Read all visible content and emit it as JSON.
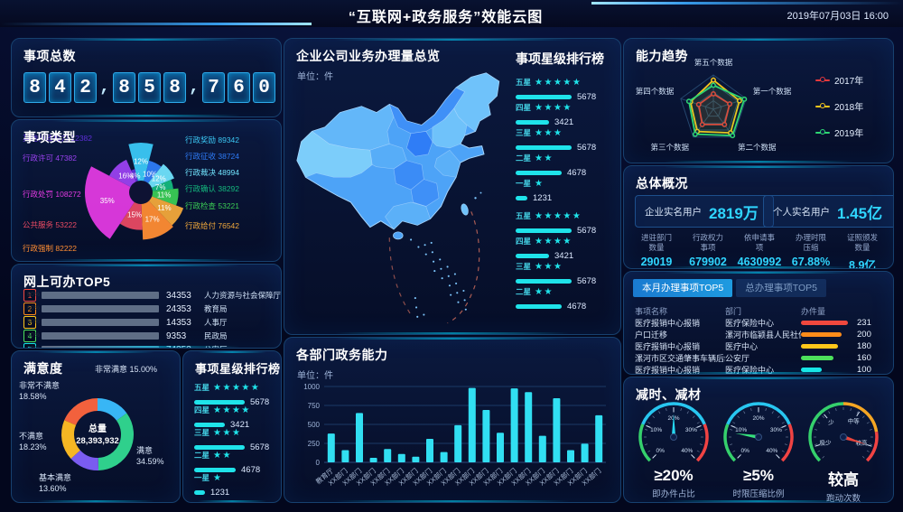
{
  "header": {
    "title": "“互联网+政务服务”效能云图",
    "datetime": "2019年07月03日  16:00"
  },
  "left": {
    "total": {
      "title": "事项总数",
      "value": "842,858,760"
    },
    "types_title": "事项类型",
    "online_title": "网上可办TOP5",
    "satisfaction_title": "满意度",
    "stars_title": "事项星级排行榜"
  },
  "middle": {
    "map_title": "企业公司业务办理量总览",
    "map_unit": "单位：件",
    "map_stars_title": "事项星级排行榜",
    "dept_title": "各部门政务能力",
    "dept_unit": "单位：件"
  },
  "right": {
    "radar_title": "能力趋势",
    "overview": {
      "title": "总体概况",
      "boxes": [
        {
          "label": "企业实名用户",
          "value": "2819万"
        },
        {
          "label": "个人实名用户",
          "value": "1.45亿"
        }
      ],
      "stats": [
        {
          "l1": "进驻部门",
          "l2": "数量",
          "value": "29019"
        },
        {
          "l1": "行政权力",
          "l2": "事项",
          "value": "679902"
        },
        {
          "l1": "依申请事",
          "l2": "项",
          "value": "4630992"
        },
        {
          "l1": "办理时限",
          "l2": "压缩",
          "value": "67.88%"
        },
        {
          "l1": "证照颁发",
          "l2": "数量",
          "value": "8.9亿"
        }
      ]
    },
    "table": {
      "tabs": [
        {
          "label": "本月办理事项TOP5",
          "active": true
        },
        {
          "label": "总办理事项TOP5",
          "active": false
        }
      ],
      "headers": [
        "事项名称",
        "部门",
        "办件量"
      ],
      "rows": [
        {
          "name": "医疗报销中心报销",
          "dept": "医疗保险中心",
          "value": 231,
          "color": "#f0483e"
        },
        {
          "name": "户口迁移",
          "dept": "漯河市临颍县人民社保...",
          "value": 200,
          "color": "#ff8c1a"
        },
        {
          "name": "医疗报销中心报销",
          "dept": "医疗中心",
          "value": 180,
          "color": "#ffc71a"
        },
        {
          "name": "漯河市区交通肇事车辆后续处...",
          "dept": "公安厅",
          "value": 160,
          "color": "#4ce05b"
        },
        {
          "name": "医疗报销中心报销",
          "dept": "医疗保险中心",
          "value": 100,
          "color": "#17e6e6"
        }
      ]
    },
    "gauges_title": "减时、减材"
  },
  "chart_data": [
    {
      "id": "item_types",
      "type": "rose",
      "title": "事项类型",
      "slices": [
        {
          "label": "行政奖励",
          "value": 89342,
          "percent": 12,
          "color": "#3bc8f5"
        },
        {
          "label": "行政征收",
          "value": 38724,
          "percent": 10,
          "color": "#2e7bf6"
        },
        {
          "label": "行政裁决",
          "value": 48994,
          "percent": 12,
          "color": "#70e2fc"
        },
        {
          "label": "行政确认",
          "value": 38292,
          "percent": 7,
          "color": "#14b87e"
        },
        {
          "label": "行政检查",
          "value": 53221,
          "percent": 11,
          "color": "#3acb55"
        },
        {
          "label": "行政给付",
          "value": 76542,
          "percent": 11,
          "color": "#f2a93b"
        },
        {
          "label": "行政强制",
          "value": 82222,
          "percent": 17,
          "color": "#ff8d33"
        },
        {
          "label": "公共服务",
          "value": 53222,
          "percent": 15,
          "color": "#e84a63"
        },
        {
          "label": "行政处罚",
          "value": 108272,
          "percent": 35,
          "color": "#e23ae2"
        },
        {
          "label": "行政许可",
          "value": 47382,
          "percent": 16,
          "color": "#9a41f0"
        },
        {
          "label": "其他行政权力",
          "value": 12382,
          "percent": 4,
          "color": "#5d2fd8"
        }
      ],
      "left_labels": [
        10,
        9,
        8,
        7,
        6
      ],
      "right_labels": [
        0,
        1,
        2,
        3,
        4,
        5
      ]
    },
    {
      "id": "online_top5",
      "type": "bar",
      "title": "网上可办TOP5",
      "rows": [
        {
          "rank": 1,
          "percent": 80,
          "value": 34353,
          "dept": "人力资源与社会保障厅",
          "color": "#f0483e"
        },
        {
          "rank": 2,
          "percent": 60,
          "value": 24353,
          "dept": "教育局",
          "color": "#ff8c1a"
        },
        {
          "rank": 3,
          "percent": 50,
          "value": 14353,
          "dept": "人事厅",
          "color": "#ffc71a"
        },
        {
          "rank": 4,
          "percent": 40,
          "value": 9353,
          "dept": "民政局",
          "color": "#4ce05b"
        },
        {
          "rank": 5,
          "percent": 30,
          "value": 74353,
          "dept": "公安厅",
          "color": "#17e6e6"
        }
      ]
    },
    {
      "id": "satisfaction",
      "type": "pie",
      "title": "满意度",
      "center_label": "总量",
      "center_value": "28,393,932",
      "slices": [
        {
          "label": "非常满意",
          "percent": 15.0,
          "display": "15.00%",
          "color": "#38b6f5"
        },
        {
          "label": "满意",
          "percent": 34.59,
          "display": "34.59%",
          "color": "#2fd08c"
        },
        {
          "label": "基本满意",
          "percent": 13.6,
          "display": "13.60%",
          "color": "#7a5cf0"
        },
        {
          "label": "不满意",
          "percent": 18.23,
          "display": "18.23%",
          "color": "#f5b623"
        },
        {
          "label": "非常不满意",
          "percent": 18.58,
          "display": "18.58%",
          "color": "#f2613d"
        }
      ]
    },
    {
      "id": "star_rank_left",
      "type": "stars",
      "title": "事项星级排行榜",
      "max": 5678,
      "groups": [
        {
          "label": "五星",
          "stars": 5,
          "value": 5678
        },
        {
          "label": "四星",
          "stars": 4,
          "value": 3421
        },
        {
          "label": "三星",
          "stars": 3,
          "value": 5678
        },
        {
          "label": "二星",
          "stars": 2,
          "value": 4678
        },
        {
          "label": "一星",
          "stars": 1,
          "value": 1231
        }
      ]
    },
    {
      "id": "star_rank_map",
      "type": "stars",
      "title": "事项星级排行榜",
      "max": 5678,
      "set_break": 5,
      "groups": [
        {
          "label": "五星",
          "stars": 5,
          "value": 5678
        },
        {
          "label": "四星",
          "stars": 4,
          "value": 3421
        },
        {
          "label": "三星",
          "stars": 3,
          "value": 5678
        },
        {
          "label": "二星",
          "stars": 2,
          "value": 4678
        },
        {
          "label": "一星",
          "stars": 1,
          "value": 1231
        },
        {
          "label": "五星",
          "stars": 5,
          "value": 5678
        },
        {
          "label": "四星",
          "stars": 4,
          "value": 3421
        },
        {
          "label": "三星",
          "stars": 3,
          "value": 5678
        },
        {
          "label": "二星",
          "stars": 2,
          "value": 4678
        }
      ]
    },
    {
      "id": "dept_capacity",
      "type": "bar",
      "title": "各部门政务能力",
      "unit": "单位：件",
      "categories": [
        "教育厅",
        "XX部门",
        "XX部门",
        "XX部门",
        "XX部门",
        "XX部门",
        "XX部门",
        "XX部门",
        "XX部门",
        "XX部门",
        "XX部门",
        "XX部门",
        "XX部门",
        "XX部门",
        "XX部门",
        "XX部门",
        "XX部门",
        "XX部门",
        "XX部门",
        "XX部门"
      ],
      "values": [
        380,
        160,
        650,
        60,
        175,
        110,
        75,
        310,
        135,
        490,
        980,
        690,
        390,
        975,
        925,
        350,
        845,
        160,
        245,
        620
      ],
      "yticks": [
        0,
        250,
        500,
        750,
        1000
      ],
      "ymax": 1000,
      "bar_color": "#31dff2"
    },
    {
      "id": "ability_trend",
      "type": "radar",
      "title": "能力趋势",
      "max": 100,
      "levels": 4,
      "axes": [
        "第一个数据",
        "第二个数据",
        "第三个数据",
        "第四个数据",
        "第五个数据"
      ],
      "series": [
        {
          "name": "2017年",
          "color": "#e4393c",
          "values": [
            50,
            55,
            55,
            45,
            45
          ]
        },
        {
          "name": "2018年",
          "color": "#f5c61c",
          "values": [
            80,
            85,
            80,
            70,
            85
          ]
        },
        {
          "name": "2019年",
          "color": "#2ed573",
          "values": [
            95,
            95,
            90,
            75,
            70
          ]
        }
      ]
    },
    {
      "id": "reduce_gauges",
      "type": "gauge",
      "title": "减时、减材",
      "items": [
        {
          "value": "≥20%",
          "caption": "即办件占比",
          "needle": 0.5,
          "needle_color": "#25d6f0",
          "ticks": [
            {
              "f": 0,
              "t": "0%"
            },
            {
              "f": 0.25,
              "t": "10%"
            },
            {
              "f": 0.5,
              "t": "20%"
            },
            {
              "f": 0.75,
              "t": "30%"
            },
            {
              "f": 1,
              "t": "40%"
            }
          ],
          "segments": [
            {
              "f0": 0,
              "f1": 0.25,
              "c": "#35d06c"
            },
            {
              "f0": 0.25,
              "f1": 0.75,
              "c": "#28c6f0"
            },
            {
              "f0": 0.75,
              "f1": 1,
              "c": "#f04343"
            }
          ]
        },
        {
          "value": "≥5%",
          "caption": "时限压缩比例",
          "needle": 0.2,
          "needle_color": "#35e07c",
          "ticks": [
            {
              "f": 0,
              "t": "0%"
            },
            {
              "f": 0.25,
              "t": "10%"
            },
            {
              "f": 0.5,
              "t": "20%"
            },
            {
              "f": 0.75,
              "t": "30%"
            },
            {
              "f": 1,
              "t": "40%"
            }
          ],
          "segments": [
            {
              "f0": 0,
              "f1": 0.25,
              "c": "#35d06c"
            },
            {
              "f0": 0.25,
              "f1": 0.75,
              "c": "#28c6f0"
            },
            {
              "f0": 0.75,
              "f1": 1,
              "c": "#f04343"
            }
          ]
        },
        {
          "value": "较高",
          "caption": "跑动次数",
          "needle": 0.9,
          "needle_color": "#e8453c",
          "ticks": [
            {
              "f": 0.1,
              "t": "极少"
            },
            {
              "f": 0.35,
              "t": "少"
            },
            {
              "f": 0.62,
              "t": "中等"
            },
            {
              "f": 0.9,
              "t": "较高"
            }
          ],
          "segments": [
            {
              "f0": 0,
              "f1": 0.5,
              "c": "#35d06c"
            },
            {
              "f0": 0.5,
              "f1": 0.8,
              "c": "#f5a623"
            },
            {
              "f0": 0.8,
              "f1": 1,
              "c": "#f04343"
            }
          ]
        }
      ]
    }
  ]
}
